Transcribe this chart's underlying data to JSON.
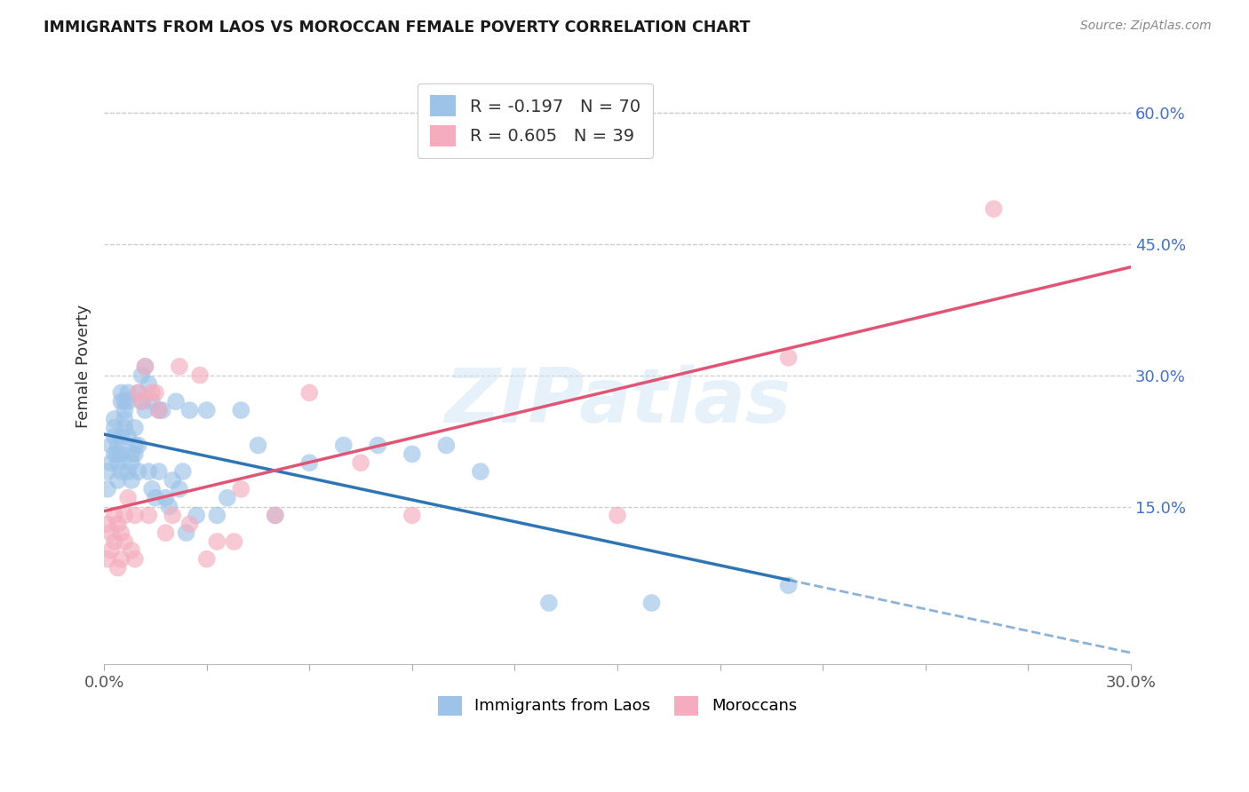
{
  "title": "IMMIGRANTS FROM LAOS VS MOROCCAN FEMALE POVERTY CORRELATION CHART",
  "source": "Source: ZipAtlas.com",
  "ylabel": "Female Poverty",
  "legend_laos_r": "-0.197",
  "legend_laos_n": "70",
  "legend_moroccan_r": "0.605",
  "legend_moroccan_n": "39",
  "laos_color": "#9dc3e8",
  "moroccan_color": "#f4acbe",
  "laos_line_color": "#2e75b6",
  "moroccan_line_color": "#e05575",
  "xlim": [
    0.0,
    0.3
  ],
  "ylim": [
    -0.03,
    0.65
  ],
  "watermark_text": "ZIPatlas",
  "xtick_positions": [
    0.0,
    0.03,
    0.06,
    0.09,
    0.12,
    0.15,
    0.18,
    0.21,
    0.24,
    0.27,
    0.3
  ],
  "laos_x": [
    0.001,
    0.001,
    0.002,
    0.002,
    0.003,
    0.003,
    0.003,
    0.003,
    0.004,
    0.004,
    0.004,
    0.004,
    0.005,
    0.005,
    0.005,
    0.005,
    0.005,
    0.006,
    0.006,
    0.006,
    0.006,
    0.007,
    0.007,
    0.007,
    0.007,
    0.008,
    0.008,
    0.008,
    0.009,
    0.009,
    0.009,
    0.01,
    0.01,
    0.01,
    0.011,
    0.011,
    0.012,
    0.012,
    0.013,
    0.013,
    0.014,
    0.014,
    0.015,
    0.016,
    0.016,
    0.017,
    0.018,
    0.019,
    0.02,
    0.021,
    0.022,
    0.023,
    0.024,
    0.025,
    0.027,
    0.03,
    0.033,
    0.036,
    0.04,
    0.045,
    0.05,
    0.06,
    0.07,
    0.08,
    0.09,
    0.1,
    0.11,
    0.13,
    0.16,
    0.2
  ],
  "laos_y": [
    0.19,
    0.17,
    0.2,
    0.22,
    0.25,
    0.24,
    0.23,
    0.21,
    0.22,
    0.21,
    0.2,
    0.18,
    0.19,
    0.21,
    0.23,
    0.27,
    0.28,
    0.27,
    0.26,
    0.25,
    0.24,
    0.19,
    0.23,
    0.27,
    0.28,
    0.2,
    0.21,
    0.18,
    0.24,
    0.22,
    0.21,
    0.19,
    0.22,
    0.28,
    0.27,
    0.3,
    0.26,
    0.31,
    0.19,
    0.29,
    0.17,
    0.27,
    0.16,
    0.26,
    0.19,
    0.26,
    0.16,
    0.15,
    0.18,
    0.27,
    0.17,
    0.19,
    0.12,
    0.26,
    0.14,
    0.26,
    0.14,
    0.16,
    0.26,
    0.22,
    0.14,
    0.2,
    0.22,
    0.22,
    0.21,
    0.22,
    0.19,
    0.04,
    0.04,
    0.06
  ],
  "moroccan_x": [
    0.001,
    0.001,
    0.002,
    0.002,
    0.003,
    0.003,
    0.004,
    0.004,
    0.005,
    0.005,
    0.006,
    0.006,
    0.007,
    0.008,
    0.009,
    0.009,
    0.01,
    0.011,
    0.012,
    0.013,
    0.014,
    0.015,
    0.016,
    0.018,
    0.02,
    0.022,
    0.025,
    0.028,
    0.03,
    0.033,
    0.038,
    0.04,
    0.05,
    0.06,
    0.075,
    0.09,
    0.15,
    0.2,
    0.26
  ],
  "moroccan_y": [
    0.13,
    0.09,
    0.12,
    0.1,
    0.11,
    0.14,
    0.13,
    0.08,
    0.12,
    0.09,
    0.14,
    0.11,
    0.16,
    0.1,
    0.14,
    0.09,
    0.28,
    0.27,
    0.31,
    0.14,
    0.28,
    0.28,
    0.26,
    0.12,
    0.14,
    0.31,
    0.13,
    0.3,
    0.09,
    0.11,
    0.11,
    0.17,
    0.14,
    0.28,
    0.2,
    0.14,
    0.14,
    0.32,
    0.49
  ]
}
